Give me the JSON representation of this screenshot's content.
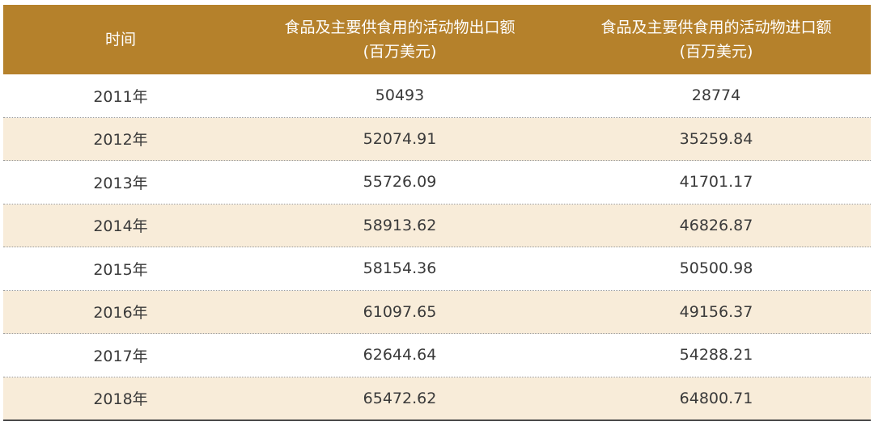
{
  "header": {
    "col0": "时间",
    "col1_line1": "食品及主要供食用的活动物出口额",
    "col1_line2": "(百万美元)",
    "col2_line1": "食品及主要供食用的活动物进口额",
    "col2_line2": "(百万美元)"
  },
  "rows": [
    {
      "year": "2011年",
      "export": "50493",
      "import": "28774"
    },
    {
      "year": "2012年",
      "export": "52074.91",
      "import": "35259.84"
    },
    {
      "year": "2013年",
      "export": "55726.09",
      "import": "41701.17"
    },
    {
      "year": "2014年",
      "export": "58913.62",
      "import": "46826.87"
    },
    {
      "year": "2015年",
      "export": "58154.36",
      "import": "50500.98"
    },
    {
      "year": "2016年",
      "export": "61097.65",
      "import": "49156.37"
    },
    {
      "year": "2017年",
      "export": "62644.64",
      "import": "54288.21"
    },
    {
      "year": "2018年",
      "export": "65472.62",
      "import": "64800.71"
    }
  ],
  "colors": {
    "header_bg": "#b5812b",
    "alt_row_bg": "#f8ecd9"
  }
}
